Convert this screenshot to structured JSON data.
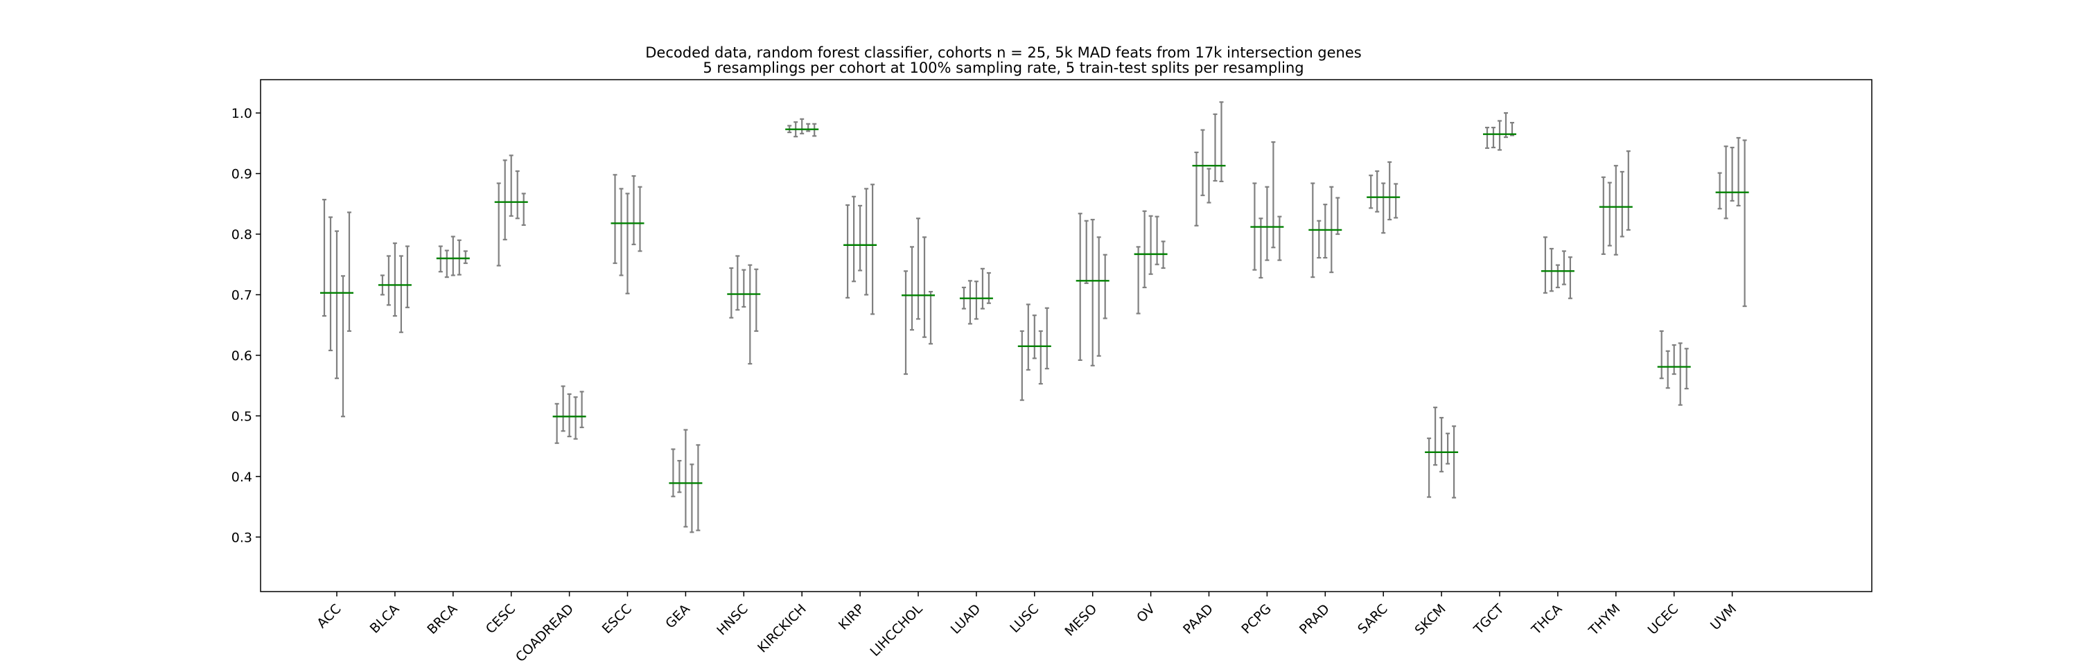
{
  "chart_data": {
    "type": "errorbar",
    "title_lines": [
      "Decoded data, random forest classifier, cohorts n = 25, 5k MAD feats from 17k intersection genes",
      "5 resamplings per cohort at 100% sampling rate, 5 train-test splits per resampling"
    ],
    "xlabel": "",
    "ylabel": "",
    "ylim": [
      0.21,
      1.055
    ],
    "yticks": [
      0.3,
      0.4,
      0.5,
      0.6,
      0.7,
      0.8,
      0.9,
      1.0
    ],
    "grid": false,
    "legend": "none",
    "colors": {
      "errorbar": "#808080",
      "mean": "#008000",
      "axes": "#000000"
    },
    "categories": [
      "ACC",
      "BLCA",
      "BRCA",
      "CESC",
      "COADREAD",
      "ESCC",
      "GEA",
      "HNSC",
      "KIRCKICH",
      "KIRP",
      "LIHCCHOL",
      "LUAD",
      "LUSC",
      "MESO",
      "OV",
      "PAAD",
      "PCPG",
      "PRAD",
      "SARC",
      "SKCM",
      "TGCT",
      "THCA",
      "THYM",
      "UCEC",
      "UVM"
    ],
    "resamplings_per_cohort": 5,
    "cohorts": [
      {
        "name": "ACC",
        "mean": 0.703,
        "bars": [
          [
            0.665,
            0.857
          ],
          [
            0.608,
            0.828
          ],
          [
            0.562,
            0.805
          ],
          [
            0.499,
            0.731
          ],
          [
            0.64,
            0.836
          ]
        ]
      },
      {
        "name": "BLCA",
        "mean": 0.716,
        "bars": [
          [
            0.7,
            0.732
          ],
          [
            0.683,
            0.764
          ],
          [
            0.665,
            0.785
          ],
          [
            0.638,
            0.764
          ],
          [
            0.679,
            0.78
          ]
        ]
      },
      {
        "name": "BRCA",
        "mean": 0.76,
        "bars": [
          [
            0.738,
            0.78
          ],
          [
            0.729,
            0.773
          ],
          [
            0.732,
            0.796
          ],
          [
            0.733,
            0.79
          ],
          [
            0.752,
            0.772
          ]
        ]
      },
      {
        "name": "CESC",
        "mean": 0.853,
        "bars": [
          [
            0.748,
            0.884
          ],
          [
            0.791,
            0.922
          ],
          [
            0.83,
            0.93
          ],
          [
            0.826,
            0.904
          ],
          [
            0.815,
            0.867
          ]
        ]
      },
      {
        "name": "COADREAD",
        "mean": 0.499,
        "bars": [
          [
            0.455,
            0.52
          ],
          [
            0.475,
            0.549
          ],
          [
            0.466,
            0.536
          ],
          [
            0.462,
            0.531
          ],
          [
            0.481,
            0.54
          ]
        ]
      },
      {
        "name": "ESCC",
        "mean": 0.818,
        "bars": [
          [
            0.752,
            0.898
          ],
          [
            0.732,
            0.875
          ],
          [
            0.702,
            0.867
          ],
          [
            0.783,
            0.896
          ],
          [
            0.772,
            0.878
          ]
        ]
      },
      {
        "name": "GEA",
        "mean": 0.389,
        "bars": [
          [
            0.367,
            0.445
          ],
          [
            0.374,
            0.426
          ],
          [
            0.317,
            0.477
          ],
          [
            0.308,
            0.42
          ],
          [
            0.311,
            0.452
          ]
        ]
      },
      {
        "name": "HNSC",
        "mean": 0.701,
        "bars": [
          [
            0.662,
            0.744
          ],
          [
            0.675,
            0.764
          ],
          [
            0.68,
            0.741
          ],
          [
            0.586,
            0.749
          ],
          [
            0.64,
            0.742
          ]
        ]
      },
      {
        "name": "KIRCKICH",
        "mean": 0.973,
        "bars": [
          [
            0.968,
            0.979
          ],
          [
            0.961,
            0.985
          ],
          [
            0.966,
            0.99
          ],
          [
            0.97,
            0.982
          ],
          [
            0.962,
            0.982
          ]
        ]
      },
      {
        "name": "KIRP",
        "mean": 0.782,
        "bars": [
          [
            0.695,
            0.848
          ],
          [
            0.722,
            0.862
          ],
          [
            0.74,
            0.847
          ],
          [
            0.7,
            0.875
          ],
          [
            0.668,
            0.882
          ]
        ]
      },
      {
        "name": "LIHCCHOL",
        "mean": 0.699,
        "bars": [
          [
            0.569,
            0.739
          ],
          [
            0.642,
            0.779
          ],
          [
            0.66,
            0.826
          ],
          [
            0.63,
            0.795
          ],
          [
            0.619,
            0.705
          ]
        ]
      },
      {
        "name": "LUAD",
        "mean": 0.694,
        "bars": [
          [
            0.677,
            0.712
          ],
          [
            0.652,
            0.723
          ],
          [
            0.66,
            0.722
          ],
          [
            0.677,
            0.743
          ],
          [
            0.686,
            0.736
          ]
        ]
      },
      {
        "name": "LUSC",
        "mean": 0.615,
        "bars": [
          [
            0.526,
            0.64
          ],
          [
            0.576,
            0.684
          ],
          [
            0.595,
            0.666
          ],
          [
            0.553,
            0.64
          ],
          [
            0.578,
            0.678
          ]
        ]
      },
      {
        "name": "MESO",
        "mean": 0.723,
        "bars": [
          [
            0.592,
            0.834
          ],
          [
            0.719,
            0.822
          ],
          [
            0.583,
            0.824
          ],
          [
            0.599,
            0.795
          ],
          [
            0.661,
            0.766
          ]
        ]
      },
      {
        "name": "OV",
        "mean": 0.767,
        "bars": [
          [
            0.669,
            0.779
          ],
          [
            0.712,
            0.838
          ],
          [
            0.734,
            0.83
          ],
          [
            0.75,
            0.829
          ],
          [
            0.744,
            0.788
          ]
        ]
      },
      {
        "name": "PAAD",
        "mean": 0.913,
        "bars": [
          [
            0.814,
            0.935
          ],
          [
            0.864,
            0.972
          ],
          [
            0.852,
            0.908
          ],
          [
            0.888,
            0.998
          ],
          [
            0.887,
            1.018
          ]
        ]
      },
      {
        "name": "PCPG",
        "mean": 0.812,
        "bars": [
          [
            0.741,
            0.884
          ],
          [
            0.728,
            0.826
          ],
          [
            0.757,
            0.878
          ],
          [
            0.778,
            0.952
          ],
          [
            0.757,
            0.829
          ]
        ]
      },
      {
        "name": "PRAD",
        "mean": 0.807,
        "bars": [
          [
            0.729,
            0.884
          ],
          [
            0.761,
            0.822
          ],
          [
            0.761,
            0.849
          ],
          [
            0.737,
            0.878
          ],
          [
            0.8,
            0.86
          ]
        ]
      },
      {
        "name": "SARC",
        "mean": 0.861,
        "bars": [
          [
            0.843,
            0.897
          ],
          [
            0.837,
            0.904
          ],
          [
            0.802,
            0.884
          ],
          [
            0.824,
            0.919
          ],
          [
            0.827,
            0.883
          ]
        ]
      },
      {
        "name": "SKCM",
        "mean": 0.44,
        "bars": [
          [
            0.366,
            0.463
          ],
          [
            0.419,
            0.514
          ],
          [
            0.408,
            0.497
          ],
          [
            0.421,
            0.471
          ],
          [
            0.365,
            0.483
          ]
        ]
      },
      {
        "name": "TGCT",
        "mean": 0.965,
        "bars": [
          [
            0.942,
            0.976
          ],
          [
            0.943,
            0.976
          ],
          [
            0.939,
            0.987
          ],
          [
            0.96,
            1.0
          ],
          [
            0.963,
            0.984
          ]
        ]
      },
      {
        "name": "THCA",
        "mean": 0.739,
        "bars": [
          [
            0.703,
            0.795
          ],
          [
            0.706,
            0.776
          ],
          [
            0.712,
            0.749
          ],
          [
            0.717,
            0.772
          ],
          [
            0.694,
            0.762
          ]
        ]
      },
      {
        "name": "THYM",
        "mean": 0.845,
        "bars": [
          [
            0.767,
            0.894
          ],
          [
            0.781,
            0.885
          ],
          [
            0.766,
            0.913
          ],
          [
            0.796,
            0.903
          ],
          [
            0.807,
            0.937
          ]
        ]
      },
      {
        "name": "UCEC",
        "mean": 0.581,
        "bars": [
          [
            0.562,
            0.64
          ],
          [
            0.546,
            0.607
          ],
          [
            0.569,
            0.617
          ],
          [
            0.518,
            0.62
          ],
          [
            0.545,
            0.611
          ]
        ]
      },
      {
        "name": "UVM",
        "mean": 0.869,
        "bars": [
          [
            0.842,
            0.901
          ],
          [
            0.826,
            0.945
          ],
          [
            0.855,
            0.943
          ],
          [
            0.847,
            0.959
          ],
          [
            0.681,
            0.955
          ]
        ]
      }
    ]
  }
}
